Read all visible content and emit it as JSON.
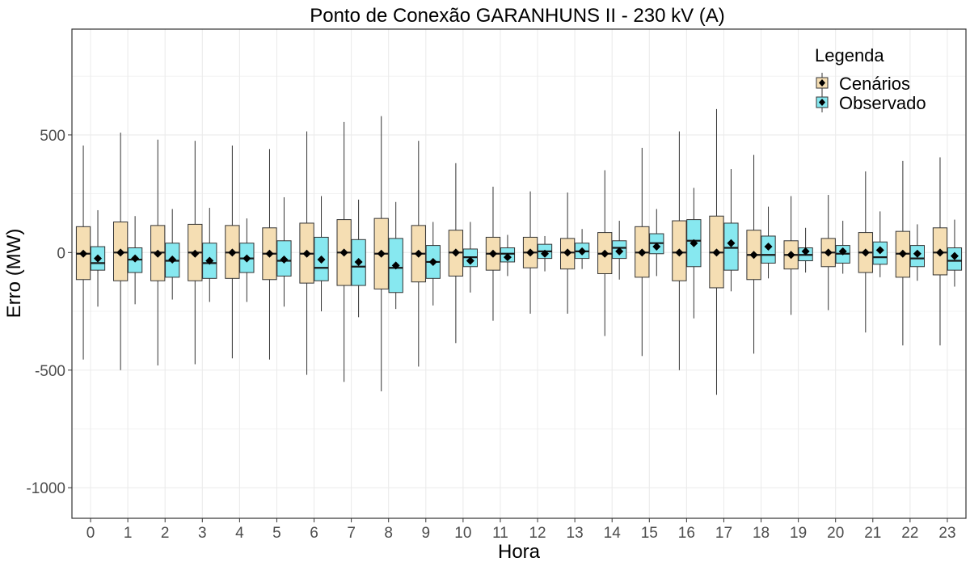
{
  "chart_data": {
    "type": "boxplot",
    "title": "Ponto de Conexão GARANHUNS II - 230 kV (A)",
    "xlabel": "Hora",
    "ylabel": "Erro (MW)",
    "categories": [
      "0",
      "1",
      "2",
      "3",
      "4",
      "5",
      "6",
      "7",
      "8",
      "9",
      "10",
      "11",
      "12",
      "13",
      "14",
      "15",
      "16",
      "17",
      "18",
      "19",
      "20",
      "21",
      "22",
      "23"
    ],
    "ylim": [
      -1130,
      950
    ],
    "yticks": [
      500,
      0,
      -500,
      -1000
    ],
    "grid": true,
    "legend": {
      "title": "Legenda",
      "position": "top-right",
      "entries": [
        "Cenários",
        "Observado"
      ]
    },
    "colors": {
      "Cenários": "#f5deb3",
      "Observado": "#87e8f0",
      "grid": "#ebebeb",
      "whisker": "#333333",
      "mean_marker": "#000000"
    },
    "series": [
      {
        "name": "Cenários",
        "min": [
          -455,
          -500,
          -480,
          -475,
          -450,
          -455,
          -520,
          -550,
          -590,
          -485,
          -385,
          -290,
          -260,
          -260,
          -355,
          -440,
          -500,
          -605,
          -430,
          -265,
          -245,
          -340,
          -395,
          -395
        ],
        "q1": [
          -115,
          -120,
          -120,
          -120,
          -110,
          -115,
          -130,
          -140,
          -155,
          -125,
          -100,
          -75,
          -65,
          -70,
          -90,
          -105,
          -120,
          -150,
          -115,
          -70,
          -60,
          -85,
          -105,
          -95
        ],
        "median": [
          -5,
          0,
          0,
          0,
          0,
          -5,
          -5,
          0,
          -5,
          -5,
          0,
          -5,
          0,
          0,
          -5,
          0,
          0,
          0,
          -10,
          -10,
          0,
          0,
          -5,
          0
        ],
        "q3": [
          110,
          130,
          115,
          120,
          115,
          105,
          125,
          140,
          145,
          115,
          95,
          65,
          65,
          60,
          85,
          110,
          135,
          155,
          95,
          50,
          60,
          85,
          90,
          105
        ],
        "max": [
          455,
          510,
          480,
          475,
          455,
          440,
          515,
          555,
          580,
          475,
          380,
          280,
          260,
          255,
          350,
          445,
          515,
          610,
          415,
          240,
          245,
          345,
          390,
          405
        ],
        "mean": [
          -5,
          0,
          -5,
          -5,
          0,
          -5,
          -5,
          0,
          -5,
          -5,
          0,
          -5,
          0,
          0,
          -5,
          0,
          0,
          0,
          -10,
          -10,
          0,
          0,
          -5,
          0
        ]
      },
      {
        "name": "Observado",
        "min": [
          -230,
          -220,
          -200,
          -210,
          -210,
          -230,
          -250,
          -275,
          -240,
          -225,
          -170,
          -100,
          -80,
          -70,
          -115,
          -100,
          -280,
          -165,
          -110,
          -85,
          -90,
          -105,
          -120,
          -145
        ],
        "q1": [
          -75,
          -85,
          -105,
          -110,
          -85,
          -100,
          -120,
          -140,
          -170,
          -110,
          -60,
          -40,
          -25,
          -25,
          -25,
          -5,
          -60,
          -75,
          -45,
          -35,
          -45,
          -50,
          -60,
          -75
        ],
        "median": [
          -45,
          -30,
          -35,
          -45,
          -25,
          -35,
          -65,
          -60,
          -65,
          -40,
          -20,
          -5,
          5,
          5,
          20,
          40,
          50,
          20,
          -10,
          -10,
          -5,
          -20,
          -25,
          -35
        ],
        "q3": [
          25,
          20,
          40,
          40,
          40,
          50,
          65,
          55,
          60,
          30,
          15,
          20,
          35,
          40,
          50,
          80,
          140,
          125,
          70,
          20,
          30,
          45,
          30,
          20
        ],
        "max": [
          180,
          155,
          185,
          190,
          145,
          235,
          240,
          225,
          215,
          130,
          130,
          75,
          70,
          100,
          135,
          185,
          275,
          355,
          195,
          105,
          135,
          175,
          120,
          140
        ],
        "mean": [
          -25,
          -25,
          -30,
          -35,
          -25,
          -30,
          -30,
          -40,
          -55,
          -40,
          -35,
          -20,
          -5,
          5,
          5,
          25,
          40,
          40,
          25,
          5,
          5,
          10,
          -5,
          -15
        ]
      }
    ]
  }
}
